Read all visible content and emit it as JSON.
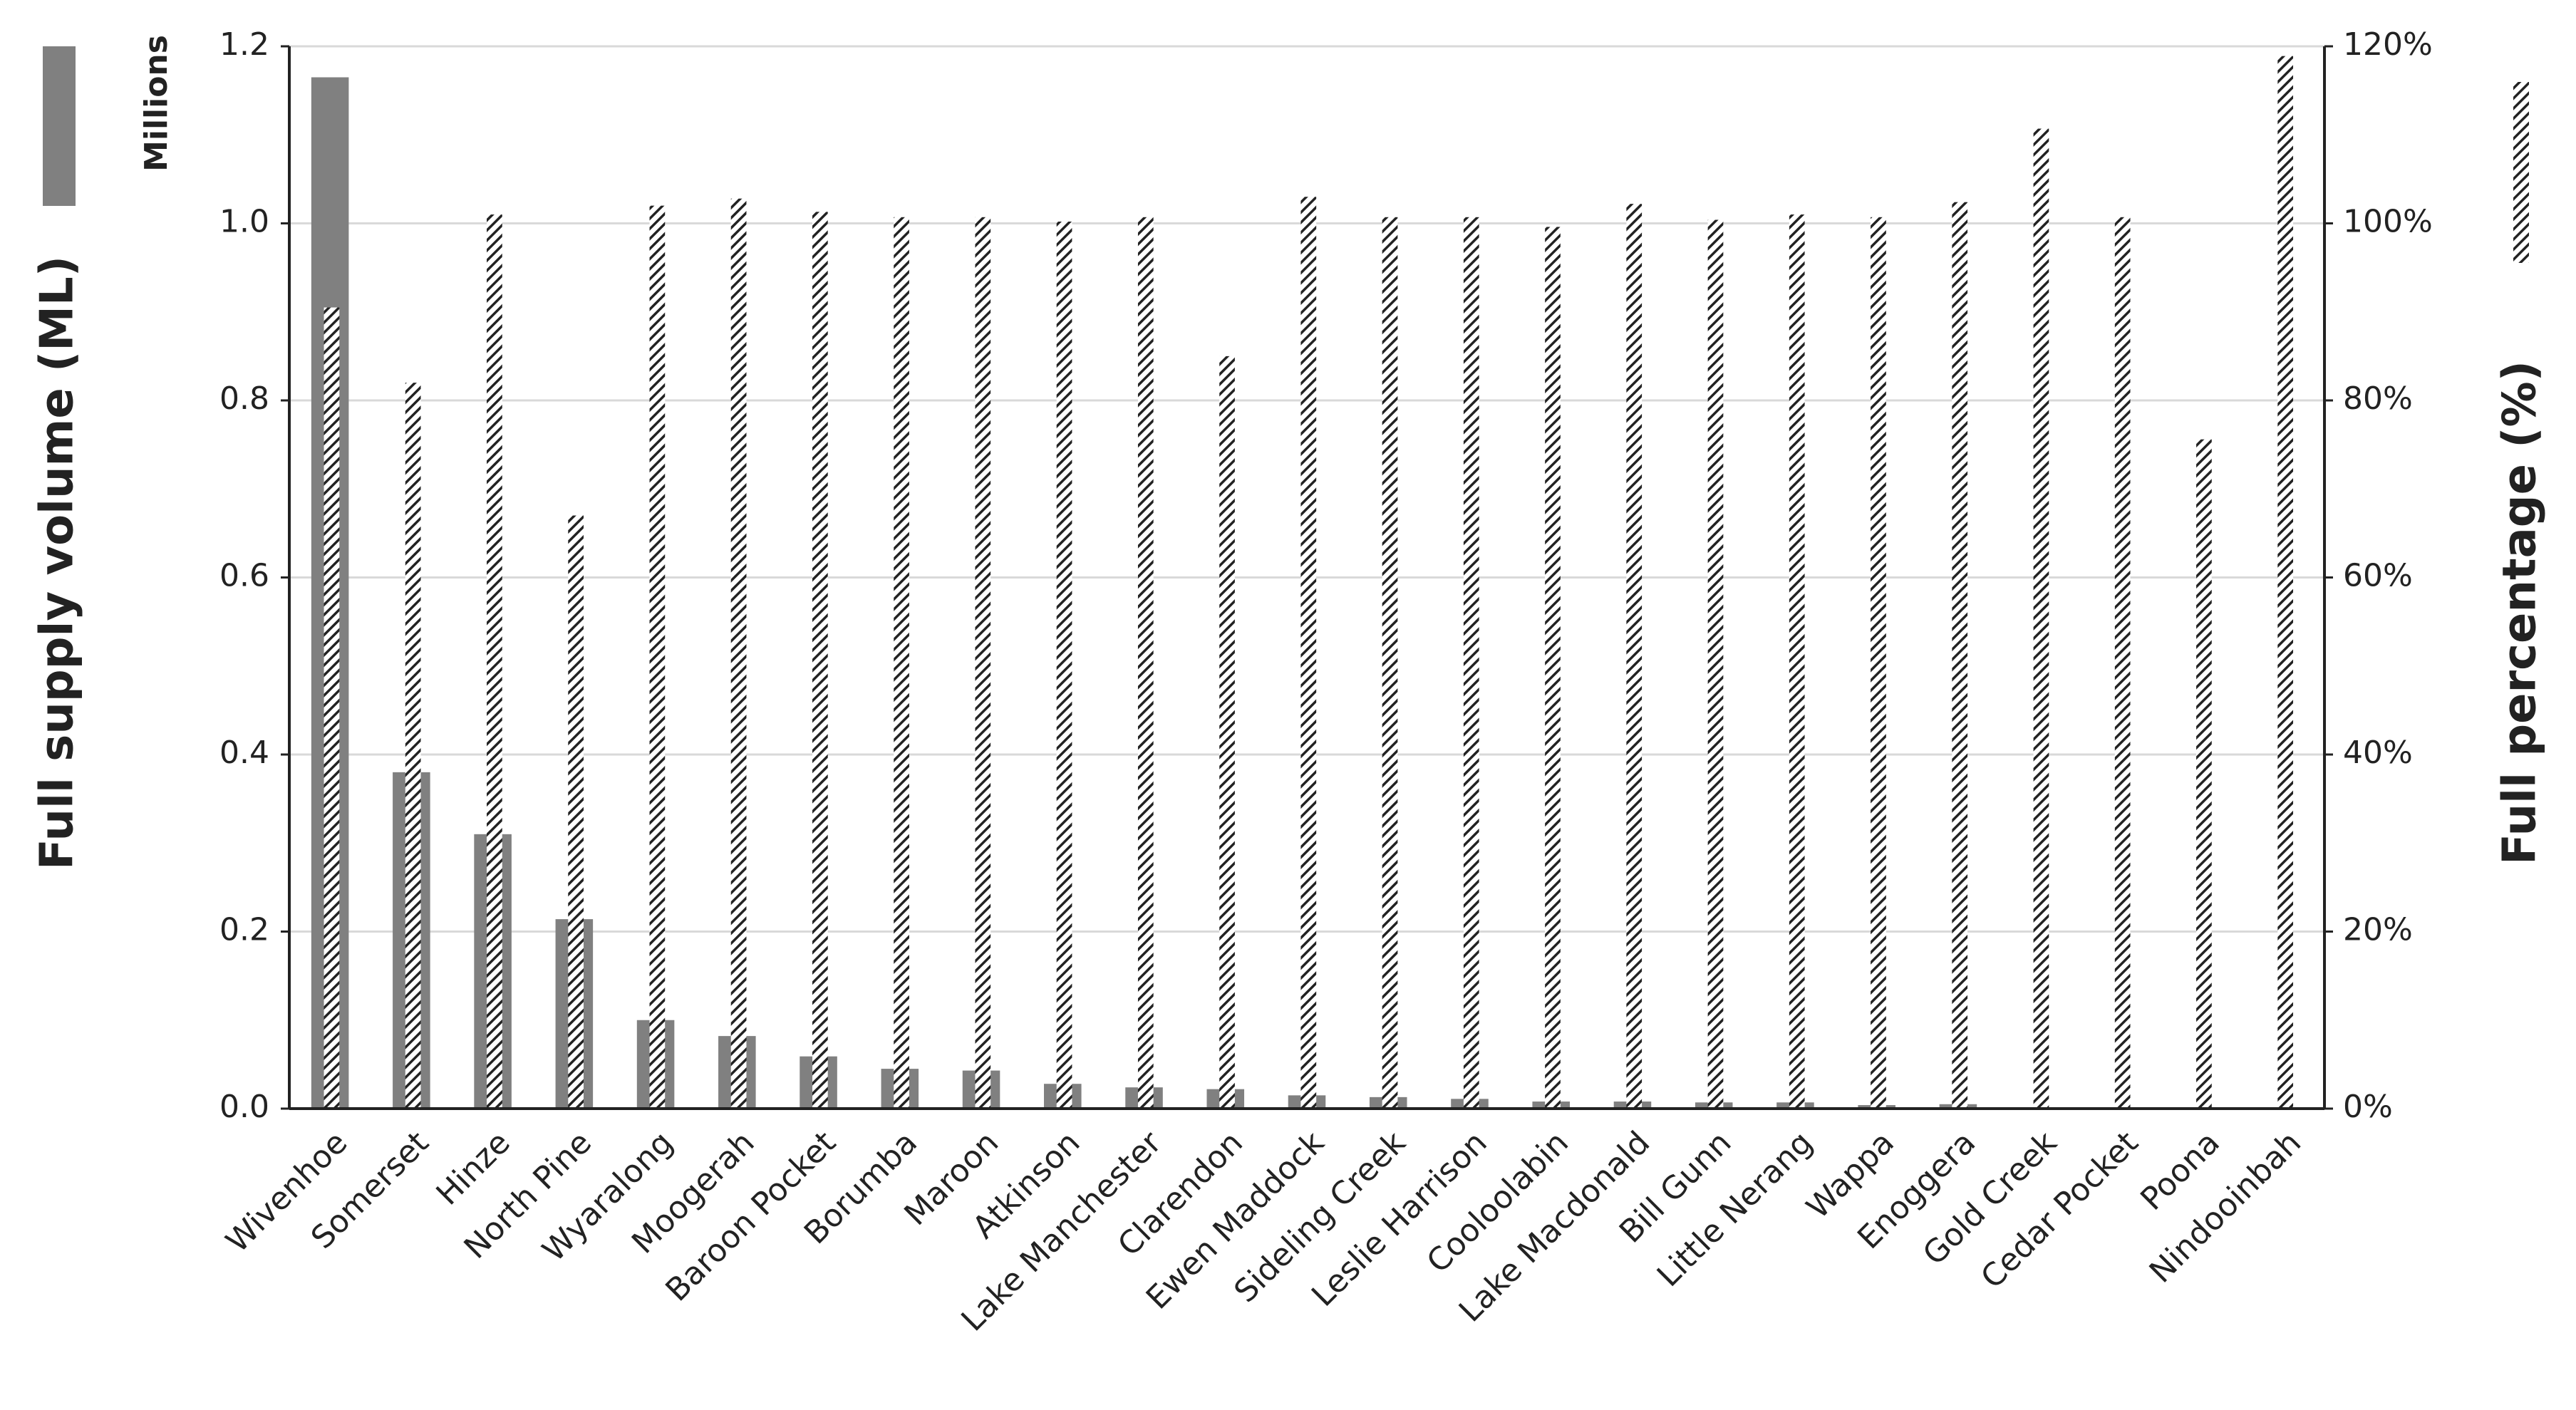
{
  "chart_data": {
    "type": "bar",
    "ylabel": "Full supply volume (ML)",
    "y2label": "Full percentage (%)",
    "yunit": "Millions",
    "categories": [
      "Wivenhoe",
      "Somerset",
      "Hinze",
      "North Pine",
      "Wyaralong",
      "Moogerah",
      "Baroon Pocket",
      "Borumba",
      "Maroon",
      "Atkinson",
      "Lake Manchester",
      "Clarendon",
      "Ewen Maddock",
      "Sideling Creek",
      "Leslie Harrison",
      "Cooloolabin",
      "Lake Macdonald",
      "Bill Gunn",
      "Little Nerang",
      "Wappa",
      "Enoggera",
      "Gold Creek",
      "Cedar Pocket",
      "Poona",
      "Nindooinbah"
    ],
    "series": [
      {
        "color": "#808080",
        "values": [
          1.165,
          0.38,
          0.31,
          0.214,
          0.1,
          0.082,
          0.059,
          0.045,
          0.043,
          0.028,
          0.024,
          0.022,
          0.015,
          0.013,
          0.011,
          0.008,
          0.008,
          0.007,
          0.007,
          0.004,
          0.005,
          0.001,
          0.001,
          0.001,
          0.001
        ]
      },
      {
        "color": "#222222",
        "axis": "y2",
        "values": [
          90.5,
          82,
          101,
          67,
          102,
          102.8,
          101.3,
          100.7,
          100.7,
          100.2,
          100.7,
          85,
          103,
          100.7,
          100.7,
          99.6,
          102.2,
          100.4,
          101,
          100.7,
          102.4,
          110.7,
          100.7,
          75.6,
          118.9
        ]
      }
    ],
    "ylim": [
      0,
      1.2
    ],
    "yticks": [
      {
        "value": 0,
        "label": "0.0"
      },
      {
        "value": 0.2,
        "label": "0.2"
      },
      {
        "value": 0.4,
        "label": "0.4"
      },
      {
        "value": 0.6,
        "label": "0.6"
      },
      {
        "value": 0.8,
        "label": "0.8"
      },
      {
        "value": 1,
        "label": "1.0"
      },
      {
        "value": 1.2,
        "label": "1.2"
      }
    ],
    "y2lim": [
      0,
      120
    ],
    "y2ticks": [
      {
        "value": 0,
        "label": "0%"
      },
      {
        "value": 20,
        "label": "20%"
      },
      {
        "value": 40,
        "label": "40%"
      },
      {
        "value": 60,
        "label": "60%"
      },
      {
        "value": 80,
        "label": "80%"
      },
      {
        "value": 100,
        "label": "100%"
      },
      {
        "value": 120,
        "label": "120%"
      }
    ],
    "grid": true
  }
}
